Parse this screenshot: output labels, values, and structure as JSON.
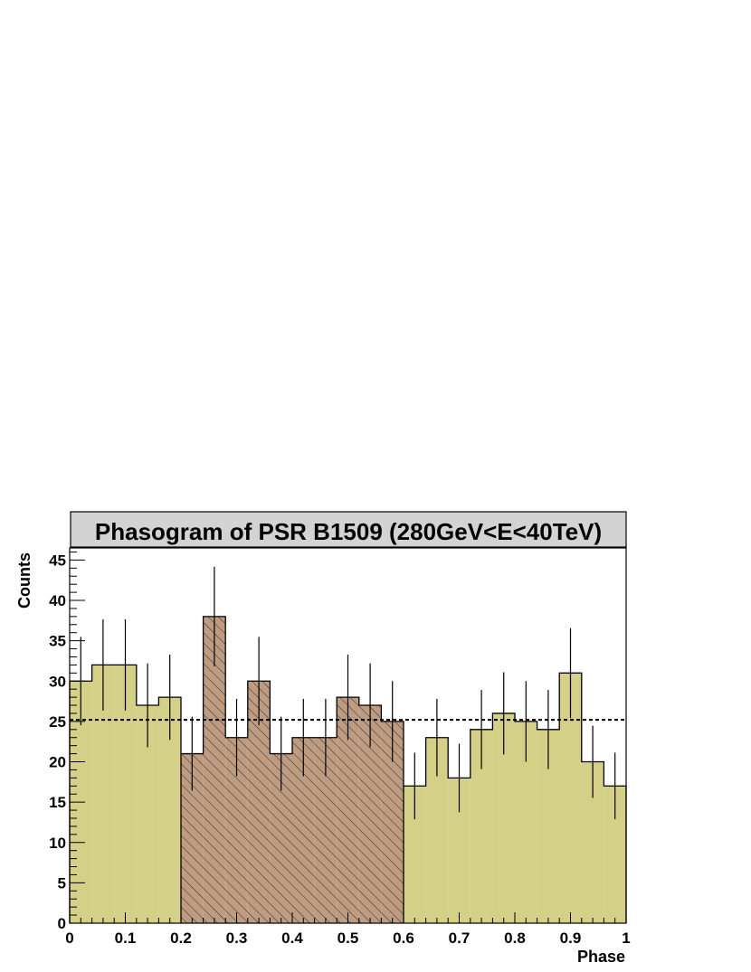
{
  "chart_data": {
    "type": "bar",
    "title": "Phasogram of PSR B1509 (280GeV<E<40TeV)",
    "xlabel": "Phase",
    "ylabel": "Counts",
    "xlim": [
      0,
      1
    ],
    "ylim": [
      0,
      46.5
    ],
    "x_ticks": [
      {
        "value": 0,
        "label": "0"
      },
      {
        "value": 0.1,
        "label": "0.1"
      },
      {
        "value": 0.2,
        "label": "0.2"
      },
      {
        "value": 0.3,
        "label": "0.3"
      },
      {
        "value": 0.4,
        "label": "0.4"
      },
      {
        "value": 0.5,
        "label": "0.5"
      },
      {
        "value": 0.6,
        "label": "0.6"
      },
      {
        "value": 0.7,
        "label": "0.7"
      },
      {
        "value": 0.8,
        "label": "0.8"
      },
      {
        "value": 0.9,
        "label": "0.9"
      },
      {
        "value": 1,
        "label": "1"
      }
    ],
    "y_ticks": [
      {
        "value": 0,
        "label": "0"
      },
      {
        "value": 5,
        "label": "5"
      },
      {
        "value": 10,
        "label": "10"
      },
      {
        "value": 15,
        "label": "15"
      },
      {
        "value": 20,
        "label": "20"
      },
      {
        "value": 25,
        "label": "25"
      },
      {
        "value": 30,
        "label": "30"
      },
      {
        "value": 35,
        "label": "35"
      },
      {
        "value": 40,
        "label": "40"
      },
      {
        "value": 45,
        "label": "45"
      }
    ],
    "bin_width": 0.04,
    "bins_low_edge": [
      0,
      0.04,
      0.08,
      0.12,
      0.16,
      0.2,
      0.24,
      0.28,
      0.32,
      0.36,
      0.4,
      0.44,
      0.48,
      0.52,
      0.56,
      0.6,
      0.64,
      0.68,
      0.72,
      0.76,
      0.8,
      0.84,
      0.88,
      0.92,
      0.96
    ],
    "counts": [
      30,
      32,
      32,
      27,
      28,
      21,
      38,
      23,
      30,
      21,
      23,
      23,
      28,
      27,
      25,
      17,
      23,
      18,
      24,
      26,
      25,
      24,
      31,
      20,
      17
    ],
    "on_region": [
      0.2,
      0.6
    ],
    "background_level": 25.2,
    "colors": {
      "off_fill": "#d4d087",
      "on_fill": "#be9c82",
      "title_box": "#d3d3d3",
      "line": "#000000"
    }
  }
}
